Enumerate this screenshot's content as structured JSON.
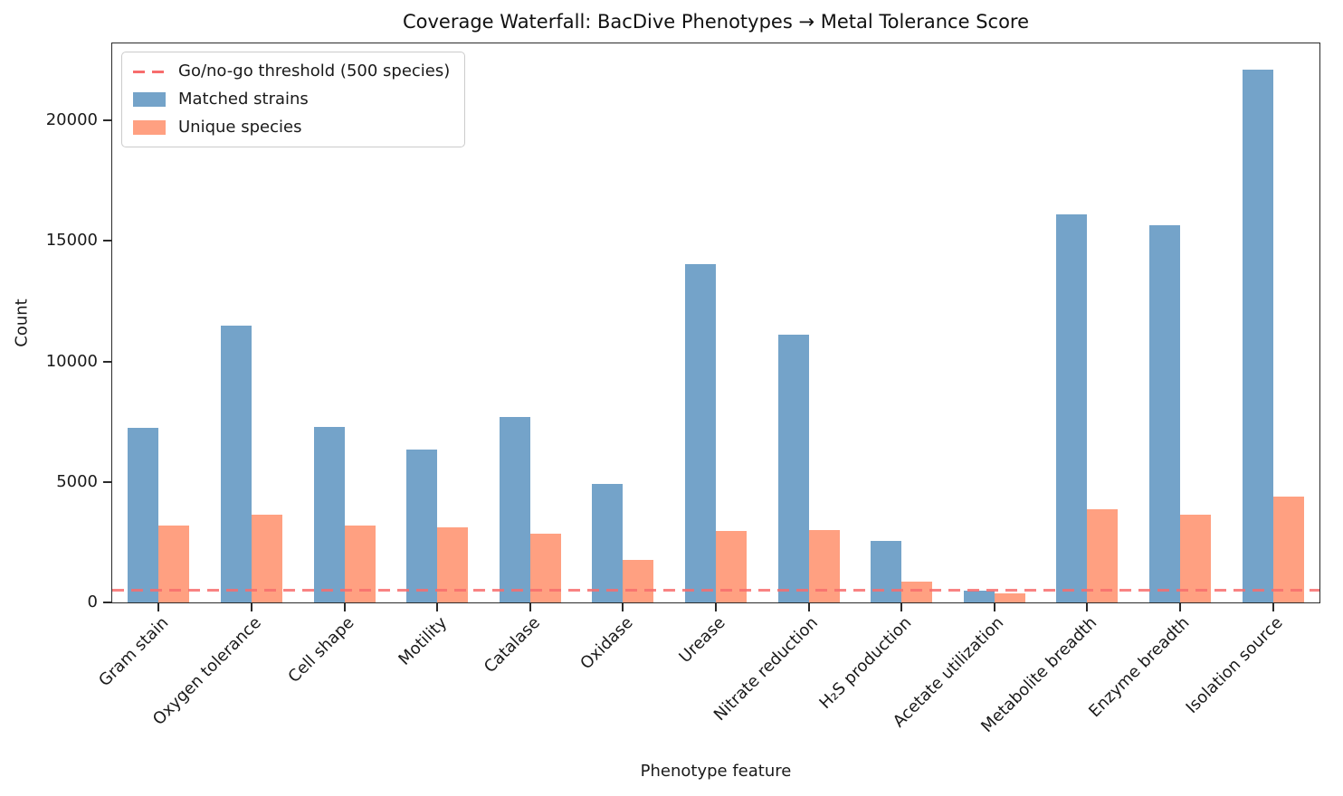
{
  "chart_data": {
    "type": "bar",
    "title": "Coverage Waterfall: BacDive Phenotypes → Metal Tolerance Score",
    "xlabel": "Phenotype feature",
    "ylabel": "Count",
    "categories": [
      "Gram stain",
      "Oxygen tolerance",
      "Cell shape",
      "Motility",
      "Catalase",
      "Oxidase",
      "Urease",
      "Nitrate reduction",
      "H₂S production",
      "Acetate utilization",
      "Metabolite breadth",
      "Enzyme breadth",
      "Isolation source"
    ],
    "series": [
      {
        "name": "Matched strains",
        "color": "#74a3c9",
        "values": [
          7250,
          11500,
          7300,
          6350,
          7700,
          4900,
          14050,
          11100,
          2550,
          480,
          16100,
          15650,
          22100
        ]
      },
      {
        "name": "Unique species",
        "color": "#ffa081",
        "values": [
          3200,
          3650,
          3200,
          3100,
          2850,
          1750,
          2950,
          3000,
          850,
          390,
          3850,
          3650,
          4400
        ]
      }
    ],
    "threshold": {
      "label": "Go/no-go threshold (500 species)",
      "value": 500,
      "color": "#f76d6d"
    },
    "yticks": [
      0,
      5000,
      10000,
      15000,
      20000
    ],
    "ylim": [
      0,
      23200
    ],
    "grid": false,
    "legend_position": "upper left",
    "bar_mode": "grouped"
  }
}
